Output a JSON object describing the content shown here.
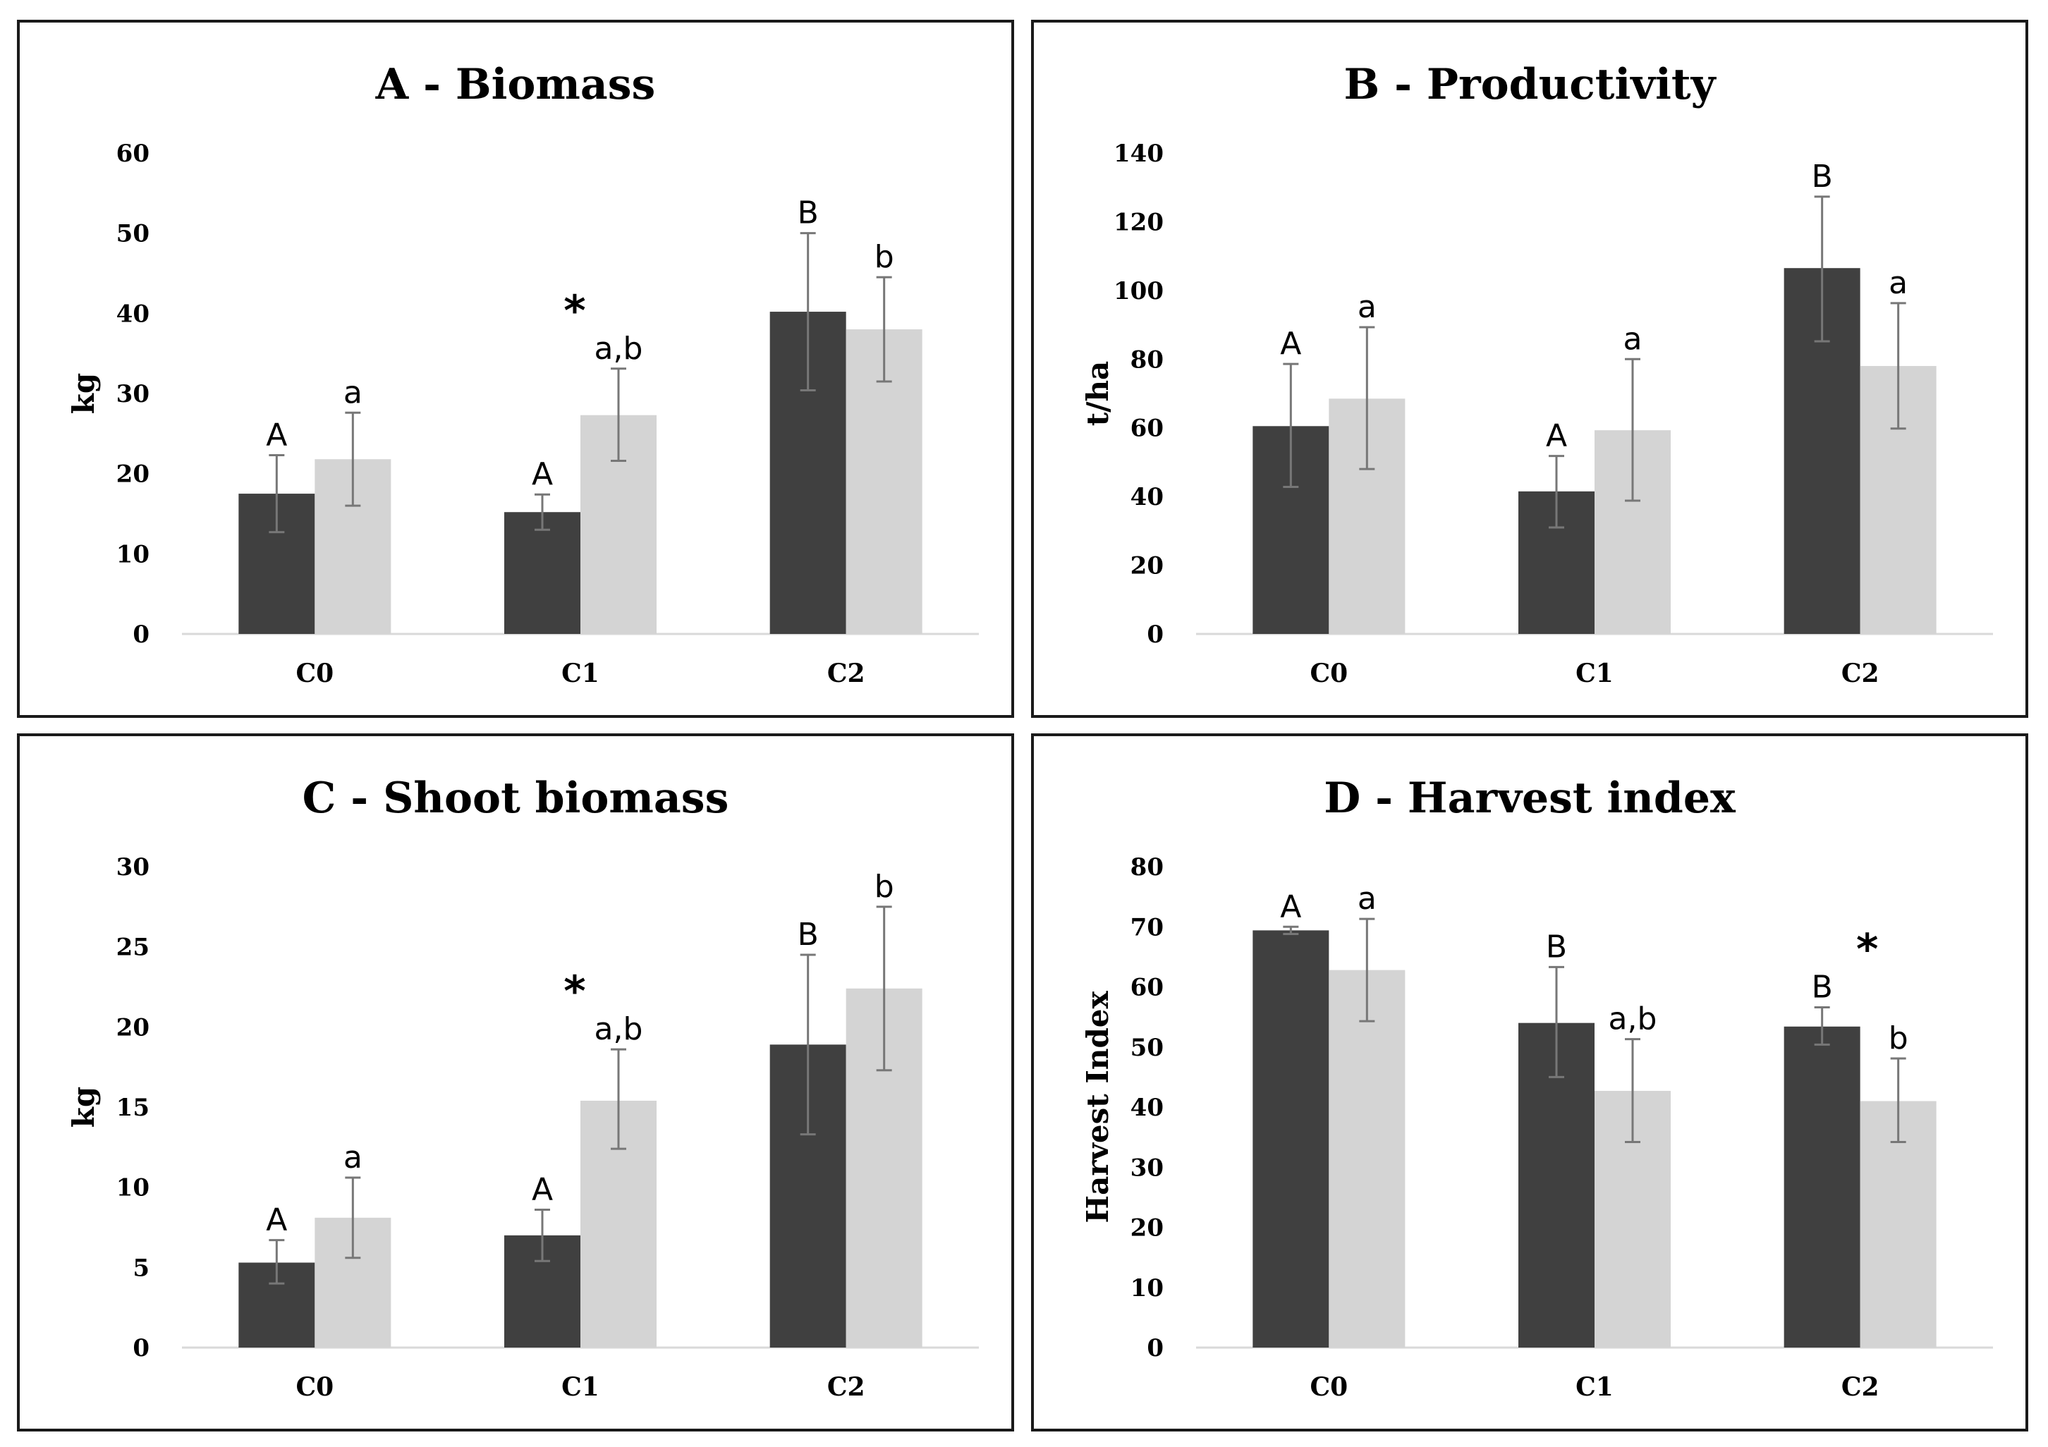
{
  "colors": {
    "series_dark": "#404040",
    "series_light": "#d4d4d4",
    "error_bar": "#777777",
    "axis": "#d9d9d9"
  },
  "chart_data": [
    {
      "id": "A",
      "type": "bar",
      "title": "A - Biomass",
      "ylabel": "kg",
      "categories": [
        "C0",
        "C1",
        "C2"
      ],
      "ylim": [
        0,
        60
      ],
      "yticks": [
        0,
        10,
        20,
        30,
        40,
        50,
        60
      ],
      "series": [
        {
          "name": "dark",
          "values": [
            17.5,
            15.2,
            40.2
          ],
          "errors": [
            [
              12.7,
              22.3
            ],
            [
              13.0,
              17.4
            ],
            [
              30.4,
              50.0
            ]
          ],
          "letters": [
            "A",
            "A",
            "B"
          ]
        },
        {
          "name": "light",
          "values": [
            21.8,
            27.3,
            38.0
          ],
          "errors": [
            [
              16.0,
              27.6
            ],
            [
              21.6,
              33.1
            ],
            [
              31.5,
              44.5
            ]
          ],
          "letters": [
            "a",
            "a,b",
            "b"
          ]
        }
      ],
      "significance": [
        {
          "category": "C1",
          "label": "*"
        }
      ]
    },
    {
      "id": "B",
      "type": "bar",
      "title": "B - Productivity",
      "ylabel": "t/ha",
      "categories": [
        "C0",
        "C1",
        "C2"
      ],
      "ylim": [
        0,
        140
      ],
      "yticks": [
        0,
        20,
        40,
        60,
        80,
        100,
        120,
        140
      ],
      "series": [
        {
          "name": "dark",
          "values": [
            60.5,
            41.5,
            106.5
          ],
          "errors": [
            [
              42.8,
              78.6
            ],
            [
              31.0,
              51.8
            ],
            [
              85.2,
              127.3
            ]
          ],
          "letters": [
            "A",
            "A",
            "B"
          ]
        },
        {
          "name": "light",
          "values": [
            68.5,
            59.3,
            78.0
          ],
          "errors": [
            [
              48.0,
              89.3
            ],
            [
              38.8,
              80.0
            ],
            [
              59.8,
              96.3
            ]
          ],
          "letters": [
            "a",
            "a",
            "a"
          ]
        }
      ],
      "significance": []
    },
    {
      "id": "C",
      "type": "bar",
      "title": "C - Shoot biomass",
      "ylabel": "kg",
      "categories": [
        "C0",
        "C1",
        "C2"
      ],
      "ylim": [
        0,
        30
      ],
      "yticks": [
        0,
        5,
        10,
        15,
        20,
        25,
        30
      ],
      "series": [
        {
          "name": "dark",
          "values": [
            5.3,
            7.0,
            18.9
          ],
          "errors": [
            [
              4.0,
              6.7
            ],
            [
              5.4,
              8.6
            ],
            [
              13.3,
              24.5
            ]
          ],
          "letters": [
            "A",
            "A",
            "B"
          ]
        },
        {
          "name": "light",
          "values": [
            8.1,
            15.4,
            22.4
          ],
          "errors": [
            [
              5.6,
              10.6
            ],
            [
              12.4,
              18.6
            ],
            [
              17.3,
              27.5
            ]
          ],
          "letters": [
            "a",
            "a,b",
            "b"
          ]
        }
      ],
      "significance": [
        {
          "category": "C1",
          "label": "*"
        }
      ]
    },
    {
      "id": "D",
      "type": "bar",
      "title": "D - Harvest index",
      "ylabel": "Harvest Index",
      "categories": [
        "C0",
        "C1",
        "C2"
      ],
      "ylim": [
        0,
        80
      ],
      "yticks": [
        0,
        10,
        20,
        30,
        40,
        50,
        60,
        70,
        80
      ],
      "series": [
        {
          "name": "dark",
          "values": [
            69.4,
            54.0,
            53.4
          ],
          "errors": [
            [
              68.8,
              70.0
            ],
            [
              45.0,
              63.3
            ],
            [
              50.4,
              56.6
            ]
          ],
          "letters": [
            "A",
            "B",
            "B"
          ]
        },
        {
          "name": "light",
          "values": [
            62.8,
            42.7,
            41.0
          ],
          "errors": [
            [
              54.3,
              71.3
            ],
            [
              34.2,
              51.3
            ],
            [
              34.2,
              48.1
            ]
          ],
          "letters": [
            "a",
            "a,b",
            "b"
          ]
        }
      ],
      "significance": [
        {
          "category": "C2",
          "label": "*"
        }
      ]
    }
  ]
}
